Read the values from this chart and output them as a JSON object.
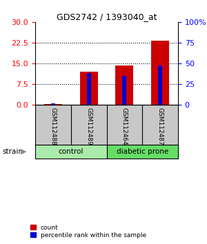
{
  "title": "GDS2742 / 1393040_at",
  "samples": [
    "GSM112488",
    "GSM112489",
    "GSM112464",
    "GSM112487"
  ],
  "group_labels": [
    "control",
    "diabetic prone"
  ],
  "count_values": [
    0.2,
    12.0,
    14.2,
    23.2
  ],
  "percentile_values": [
    1.0,
    38.0,
    35.0,
    47.0
  ],
  "left_ylim": [
    0,
    30
  ],
  "right_ylim": [
    0,
    100
  ],
  "left_yticks": [
    0,
    7.5,
    15,
    22.5,
    30
  ],
  "right_yticks": [
    0,
    25,
    50,
    75,
    100
  ],
  "right_yticklabels": [
    "0",
    "25",
    "50",
    "75",
    "100%"
  ],
  "bar_color_red": "#CC0000",
  "bar_color_blue": "#0000CC",
  "red_bar_width": 0.5,
  "blue_bar_width": 0.12,
  "background_color": "#ffffff",
  "sample_box_color": "#C8C8C8",
  "legend_count": "count",
  "legend_percentile": "percentile rank within the sample",
  "strain_label": "strain"
}
